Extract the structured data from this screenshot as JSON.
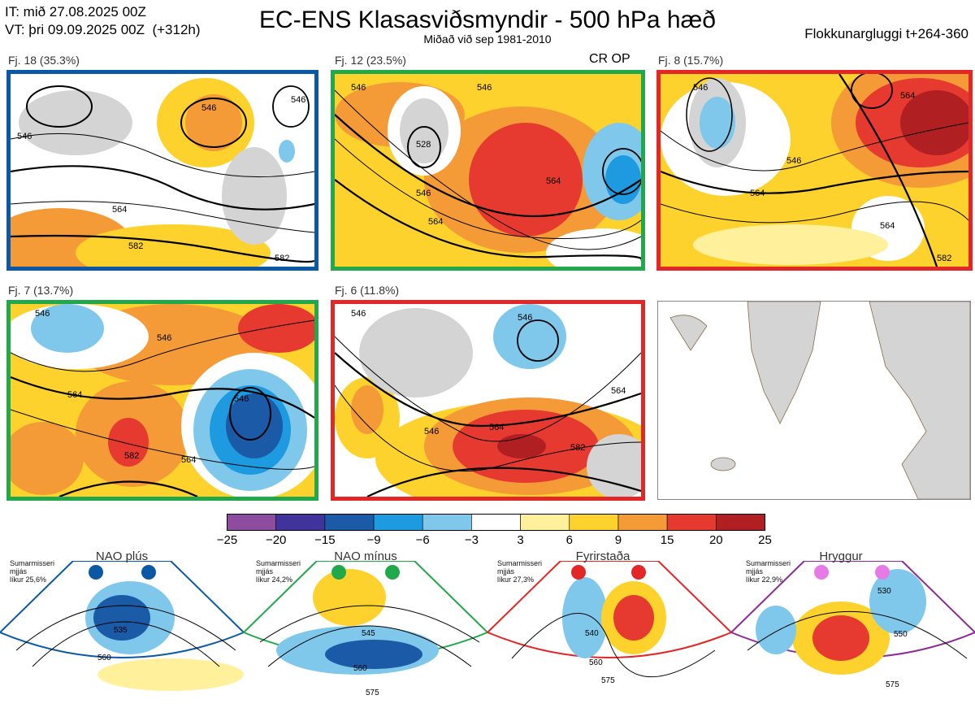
{
  "header": {
    "init_time": "IT: mið 27.08.2025 00Z",
    "valid_time": "VT: þri 09.09.2025 00Z  (+312h)",
    "title": "EC-ENS Klasasviðsmyndir - 500 hPa hæð",
    "subtitle": "Miðað við sep 1981-2010",
    "window": "Flokkunargluggi t+264-360"
  },
  "colors": {
    "blue_frame": "#0b59a6",
    "green_frame": "#21a84a",
    "red_frame": "#e32626",
    "purple_frame": "#8c2a96",
    "land": "#d4d4d4",
    "coast": "#8a6a4a"
  },
  "panels": [
    {
      "label": "Fj. 18 (35.3%)",
      "frame": "blue",
      "contours": [
        "546",
        "564",
        "582",
        "546",
        "582",
        "546"
      ],
      "extra": ""
    },
    {
      "label": "Fj. 12 (23.5%)",
      "frame": "green",
      "contours": [
        "546",
        "528",
        "546",
        "564",
        "564",
        "546"
      ],
      "extra": "CR OP"
    },
    {
      "label": "Fj. 8 (15.7%)",
      "frame": "red",
      "contours": [
        "546",
        "564",
        "546",
        "564",
        "564",
        "582"
      ],
      "extra": ""
    },
    {
      "label": "Fj. 7 (13.7%)",
      "frame": "green",
      "contours": [
        "546",
        "564",
        "546",
        "582",
        "564",
        "546"
      ],
      "extra": ""
    },
    {
      "label": "Fj. 6 (11.8%)",
      "frame": "red",
      "contours": [
        "546",
        "546",
        "564",
        "546",
        "564",
        "582"
      ],
      "extra": ""
    }
  ],
  "chart_data": {
    "type": "heatmap",
    "colorbar": {
      "ticks": [
        "−25",
        "−20",
        "−15",
        "−9",
        "−6",
        "−3",
        "3",
        "6",
        "9",
        "15",
        "20",
        "25"
      ],
      "colors": [
        "#8d4c9e",
        "#40349c",
        "#1a5aa6",
        "#1d9ae0",
        "#7fc8ec",
        "#ffffff",
        "#fff19c",
        "#fdd22c",
        "#f49a36",
        "#e6392f",
        "#b01f22"
      ]
    }
  },
  "regimes": [
    {
      "name": "NAO plús",
      "season": "Sumarmisseri",
      "smooth": "mjjás",
      "prob": "líkur 25,6%",
      "color": "#0b59a6",
      "labels": [
        "535",
        "560"
      ]
    },
    {
      "name": "NAO mínus",
      "season": "Sumarmisseri",
      "smooth": "mjjás",
      "prob": "líkur 24,2%",
      "color": "#21a84a",
      "labels": [
        "545",
        "560",
        "575"
      ]
    },
    {
      "name": "Fyrirstaða",
      "season": "Sumarmisseri",
      "smooth": "mjjás",
      "prob": "líkur 27,3%",
      "color": "#e32626",
      "labels": [
        "540",
        "560",
        "575"
      ]
    },
    {
      "name": "Hryggur",
      "season": "Sumarmisseri",
      "smooth": "mjjás",
      "prob": "líkur 22,9%",
      "color": "#8c2a96",
      "labels": [
        "530",
        "550",
        "575"
      ]
    }
  ]
}
